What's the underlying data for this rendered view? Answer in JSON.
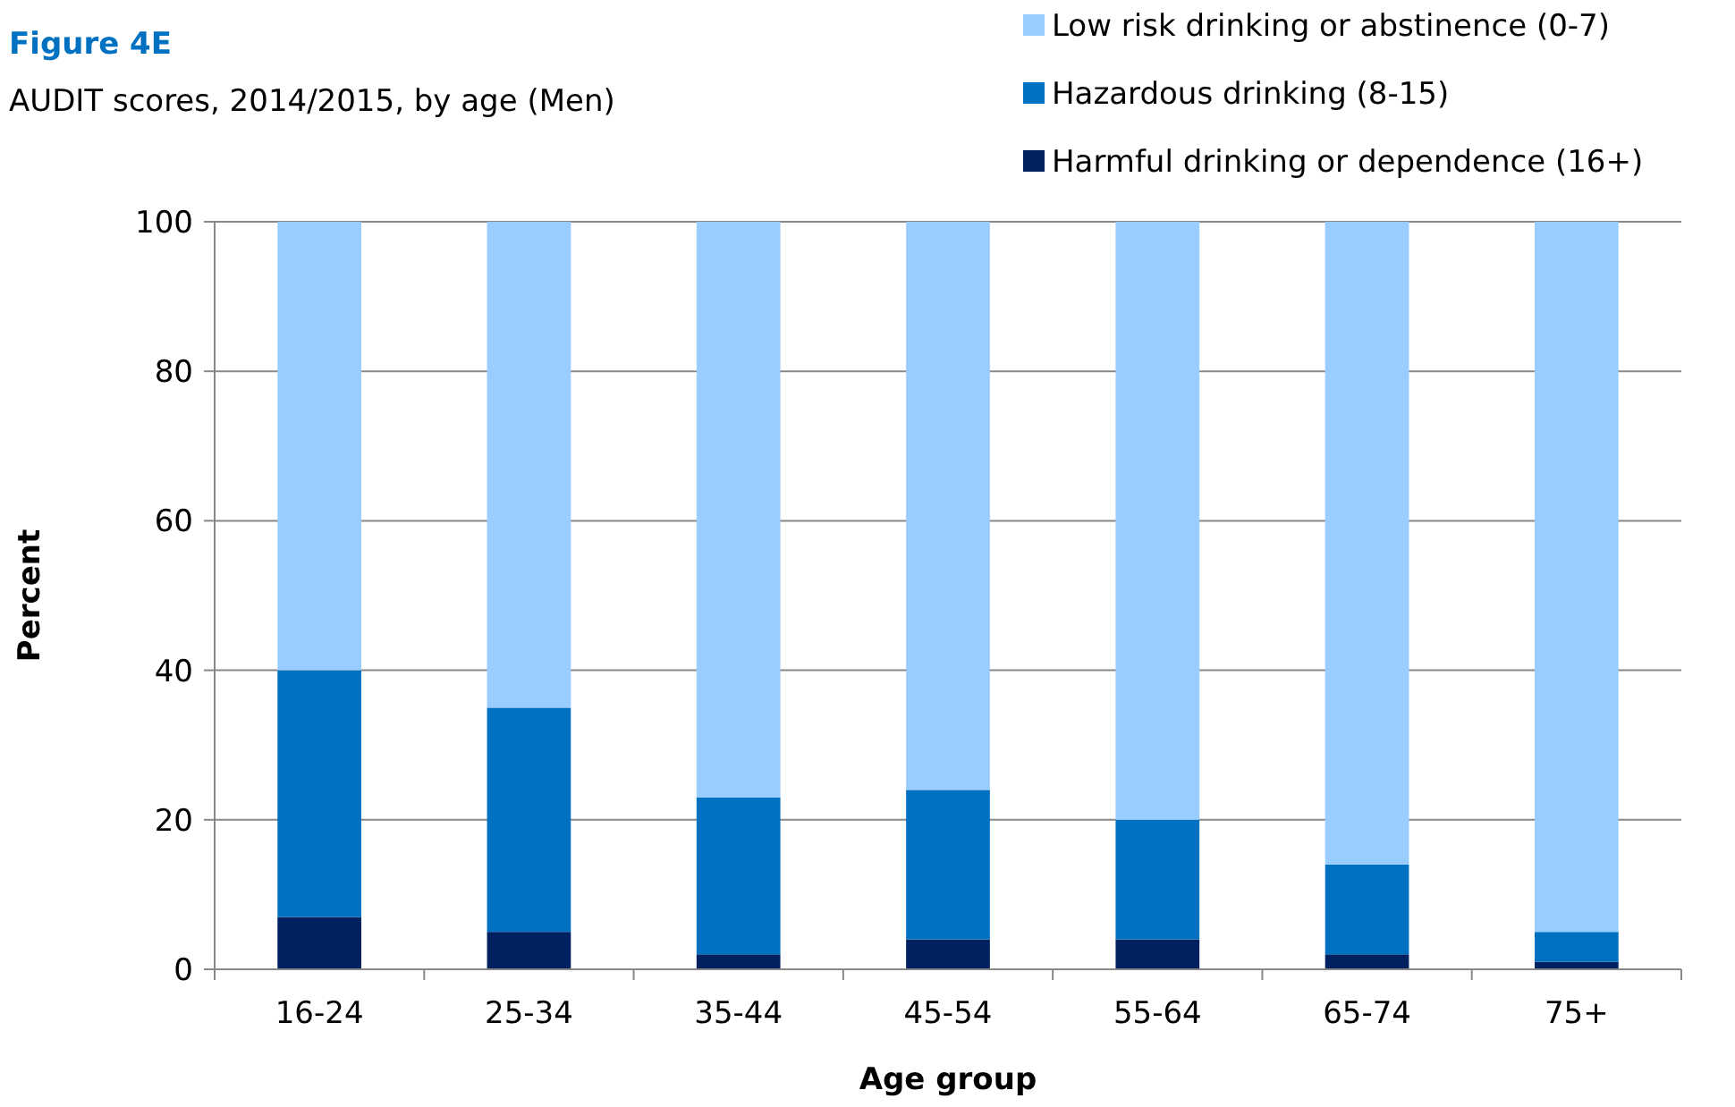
{
  "chart_data": {
    "type": "bar",
    "stacked": true,
    "title": "Figure 4E",
    "subtitle": "AUDIT scores, 2014/2015, by age (Men)",
    "xlabel": "Age group",
    "ylabel": "Percent",
    "categories": [
      "16-24",
      "25-34",
      "35-44",
      "45-54",
      "55-64",
      "65-74",
      "75+"
    ],
    "series": [
      {
        "name": "Harmful drinking or dependence (16+)",
        "color": "#002060",
        "values": [
          7,
          5,
          2,
          4,
          4,
          2,
          1
        ]
      },
      {
        "name": "Hazardous drinking (8-15)",
        "color": "#0070c0",
        "values": [
          33,
          30,
          21,
          20,
          16,
          12,
          4
        ]
      },
      {
        "name": "Low risk drinking or abstinence (0-7)",
        "color": "#99ccff",
        "values": [
          60,
          65,
          77,
          76,
          80,
          86,
          95
        ]
      }
    ],
    "ylim": [
      0,
      100
    ],
    "yticks": [
      0,
      20,
      40,
      60,
      80,
      100
    ],
    "grid": "y",
    "legend": "top right"
  }
}
